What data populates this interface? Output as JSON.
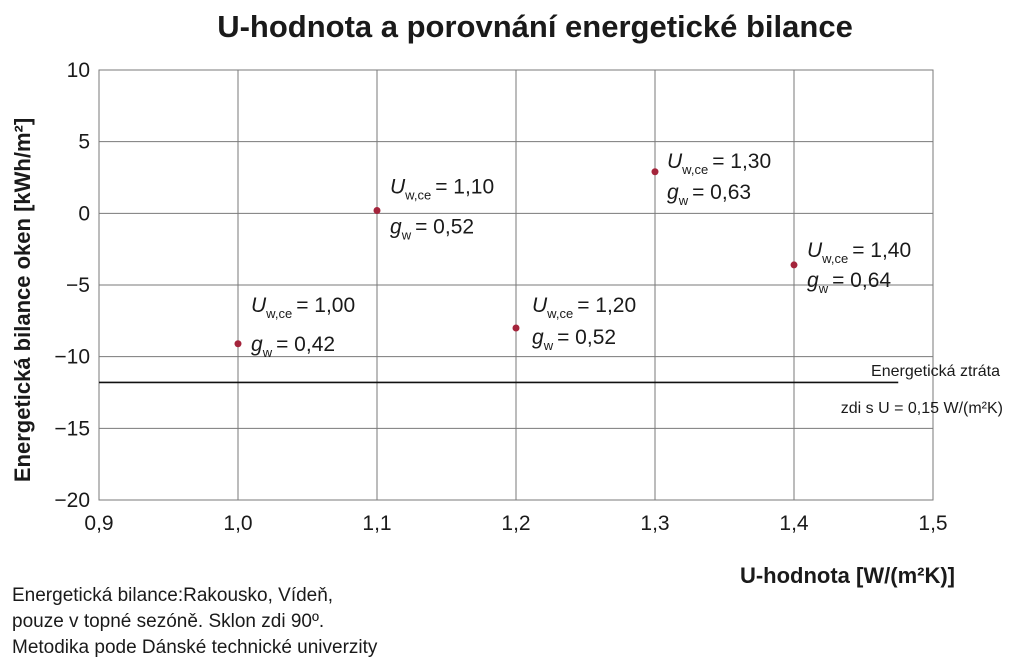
{
  "chart_data": {
    "type": "scatter",
    "title": "U-hodnota a porovnání energetické bilance",
    "xlabel": "U-hodnota [W/(m²K)]",
    "ylabel": "Energetická bilance oken [kWh/m²]",
    "xlim": [
      0.9,
      1.5
    ],
    "ylim": [
      -20,
      10
    ],
    "x_ticks": [
      "0,9",
      "1,0",
      "1,1",
      "1,2",
      "1,3",
      "1,4",
      "1,5"
    ],
    "y_ticks": [
      "10",
      "5",
      "0",
      "−5",
      "−10",
      "−15",
      "−20"
    ],
    "grid": true,
    "marker_color": "#a4243b",
    "points": [
      {
        "x": 1.0,
        "y": -9.1,
        "u_label": "U",
        "u_sub": "w,ce",
        "u_value": "= 1,00",
        "g_label": "g",
        "g_sub": "w",
        "g_value": "= 0,42"
      },
      {
        "x": 1.1,
        "y": 0.2,
        "u_label": "U",
        "u_sub": "w,ce",
        "u_value": "= 1,10",
        "g_label": "g",
        "g_sub": "w",
        "g_value": "= 0,52"
      },
      {
        "x": 1.2,
        "y": -8.0,
        "u_label": "U",
        "u_sub": "w,ce",
        "u_value": "= 1,20",
        "g_label": "g",
        "g_sub": "w",
        "g_value": "= 0,52"
      },
      {
        "x": 1.3,
        "y": 2.9,
        "u_label": "U",
        "u_sub": "w,ce",
        "u_value": "= 1,30",
        "g_label": "g",
        "g_sub": "w",
        "g_value": "= 0,63"
      },
      {
        "x": 1.4,
        "y": -3.6,
        "u_label": "U",
        "u_sub": "w,ce",
        "u_value": "= 1,40",
        "g_label": "g",
        "g_sub": "w",
        "g_value": "= 0,64"
      }
    ],
    "reference_line": {
      "y": -11.8,
      "x_range": [
        0.9,
        1.475
      ],
      "label_line1": "Energetická ztráta",
      "label_line2": "zdi s U = 0,15 W/(m²K)"
    },
    "note_lines": [
      "Energetická bilance:Rakousko, Vídeň,",
      "pouze v topné sezóně. Sklon zdi 90º.",
      "Metodika pode Dánské technické univerzity"
    ]
  }
}
